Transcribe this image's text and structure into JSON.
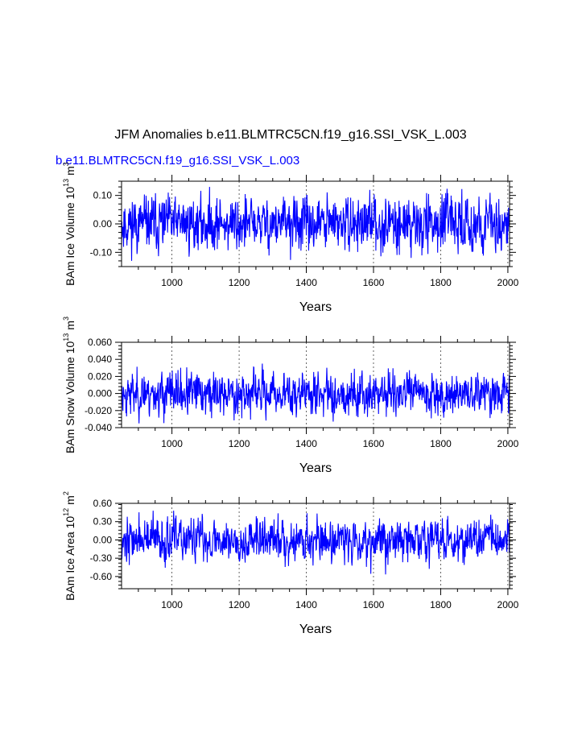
{
  "figure": {
    "title": "JFM Anomalies b.e11.BLMTRC5CN.f19_g16.SSI_VSK_L.003",
    "subtitle": "b.e11.BLMTRC5CN.f19_g16.SSI_VSK_L.003",
    "line_color": "#0000ff"
  },
  "chart_data": [
    {
      "type": "line",
      "name": "ice-volume",
      "ylabel": "BAm Ice Volume 10",
      "ylabel_exp": "13",
      "ylabel_unit": "m",
      "ylabel_unit_exp": "3",
      "xlabel": "Years",
      "xlim": [
        850,
        2005
      ],
      "ylim": [
        -0.15,
        0.15
      ],
      "x_ticks": [
        1000,
        1200,
        1400,
        1600,
        1800,
        2000
      ],
      "x_tick_labels": [
        "1000",
        "1200",
        "1400",
        "1600",
        "1800",
        "2000"
      ],
      "y_ticks": [
        0.1,
        0.0,
        -0.1
      ],
      "y_tick_labels": [
        "0.10",
        "0.00",
        "-0.10"
      ],
      "gridlines_x": [
        1000,
        1200,
        1400,
        1600,
        1800,
        2000
      ],
      "series": {
        "name": "JFM anomaly",
        "start_year": 850,
        "end_year": 2005,
        "std": 0.045,
        "min": -0.13,
        "max": 0.13,
        "seed": 11
      }
    },
    {
      "type": "line",
      "name": "snow-volume",
      "ylabel": "BAm Snow Volume 10",
      "ylabel_exp": "13",
      "ylabel_unit": "m",
      "ylabel_unit_exp": "3",
      "xlabel": "Years",
      "xlim": [
        850,
        2005
      ],
      "ylim": [
        -0.04,
        0.06
      ],
      "x_ticks": [
        1000,
        1200,
        1400,
        1600,
        1800,
        2000
      ],
      "x_tick_labels": [
        "1000",
        "1200",
        "1400",
        "1600",
        "1800",
        "2000"
      ],
      "y_ticks": [
        0.06,
        0.04,
        0.02,
        0.0,
        -0.02,
        -0.04
      ],
      "y_tick_labels": [
        "0.060",
        "0.040",
        "0.020",
        "0.000",
        "-0.020",
        "-0.040"
      ],
      "gridlines_x": [
        1000,
        1200,
        1400,
        1600,
        1800,
        2000
      ],
      "series": {
        "name": "JFM anomaly",
        "start_year": 850,
        "end_year": 2005,
        "std": 0.012,
        "min": -0.035,
        "max": 0.048,
        "seed": 23
      }
    },
    {
      "type": "line",
      "name": "ice-area",
      "ylabel": "BAm Ice Area 10",
      "ylabel_exp": "12",
      "ylabel_unit": "m",
      "ylabel_unit_exp": "2",
      "xlabel": "Years",
      "xlim": [
        850,
        2005
      ],
      "ylim": [
        -0.8,
        0.6
      ],
      "x_ticks": [
        1000,
        1200,
        1400,
        1600,
        1800,
        2000
      ],
      "x_tick_labels": [
        "1000",
        "1200",
        "1400",
        "1600",
        "1800",
        "2000"
      ],
      "y_ticks": [
        0.6,
        0.3,
        0.0,
        -0.3,
        -0.6
      ],
      "y_tick_labels": [
        "0.60",
        "0.30",
        "0.00",
        "-0.30",
        "-0.60"
      ],
      "gridlines_x": [
        1000,
        1200,
        1400,
        1600,
        1800,
        2000
      ],
      "series": {
        "name": "JFM anomaly",
        "start_year": 850,
        "end_year": 2005,
        "std": 0.17,
        "min": -0.65,
        "max": 0.48,
        "seed": 37
      }
    }
  ]
}
